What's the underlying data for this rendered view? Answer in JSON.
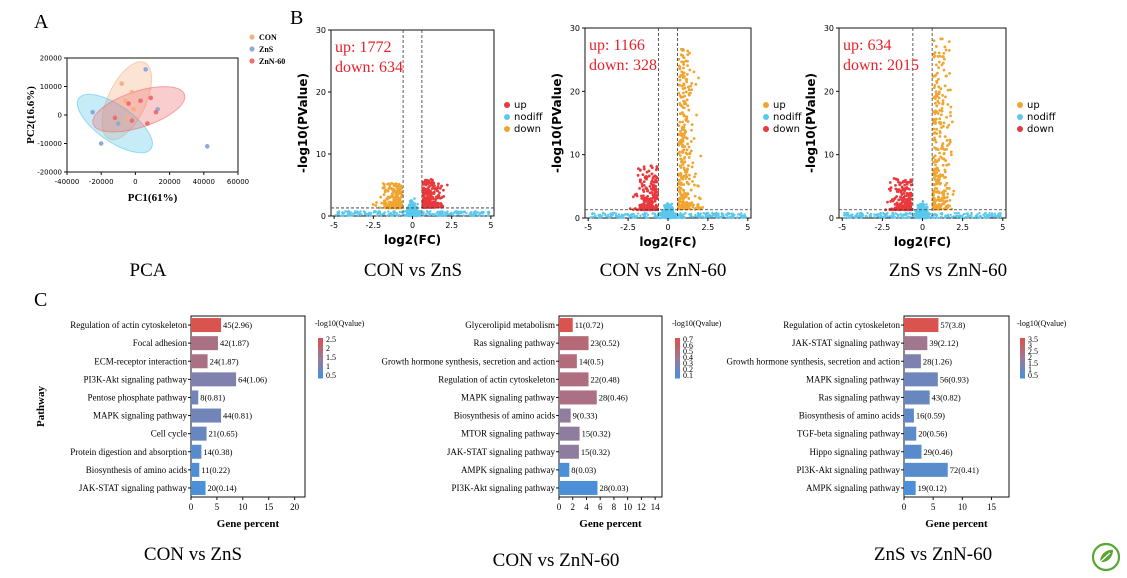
{
  "panel_labels": {
    "a": "A",
    "b": "B",
    "c": "C"
  },
  "captions": {
    "pca": "PCA",
    "volcano": [
      "CON vs ZnS",
      "CON vs ZnN-60",
      "ZnS vs ZnN-60"
    ],
    "enrich": [
      "CON vs ZnS",
      "CON vs ZnN-60",
      "ZnS vs ZnN-60"
    ]
  },
  "colors": {
    "con": "#f4b183",
    "zns": "#8fa9db",
    "znn": "#ef6f6f",
    "up_red": "#e8393d",
    "nodiff": "#5bc8ec",
    "down_orange": "#f1a531",
    "counts_text": "#e8212a",
    "bar_high": "#d9534f",
    "bar_mid": "#9c7a95",
    "bar_low": "#4a8fd8",
    "logo": "#5ba532"
  },
  "logo_icon": "leaf-logo-icon",
  "chart_data": [
    {
      "type": "scatter",
      "id": "pca",
      "xlabel": "PC1(61%)",
      "ylabel": "PC2(16.6%)",
      "xlim": [
        -40000,
        60000
      ],
      "ylim": [
        -20000,
        20000
      ],
      "xticks": [
        "-40000",
        "-20000",
        "0",
        "20000",
        "40000",
        "60000"
      ],
      "yticks": [
        "-20000",
        "-10000",
        "0",
        "10000",
        "20000"
      ],
      "legend": [
        "CON",
        "ZnS",
        "ZnN-60"
      ],
      "series": [
        {
          "name": "CON",
          "points": [
            [
              -8000,
              11000
            ],
            [
              -2000,
              8000
            ],
            [
              -6000,
              5000
            ],
            [
              -1000,
              2000
            ],
            [
              -9000,
              -3000
            ],
            [
              -5000,
              -1000
            ]
          ]
        },
        {
          "name": "ZnS",
          "points": [
            [
              6000,
              16000
            ],
            [
              -25000,
              1000
            ],
            [
              -20000,
              -10000
            ],
            [
              13000,
              2000
            ],
            [
              -10000,
              -3000
            ],
            [
              42000,
              -11000
            ]
          ]
        },
        {
          "name": "ZnN-60",
          "points": [
            [
              3000,
              5000
            ],
            [
              -4000,
              4000
            ],
            [
              9000,
              6000
            ],
            [
              12000,
              1000
            ],
            [
              -2000,
              -2000
            ],
            [
              7000,
              -3000
            ],
            [
              -12000,
              -1000
            ]
          ]
        }
      ]
    },
    {
      "type": "scatter",
      "id": "volcano1",
      "title_up": "up: 1772",
      "title_down": "down: 634",
      "xlabel": "log2(FC)",
      "ylabel": "-log10(PValue)",
      "xlim": [
        -5.2,
        5.2
      ],
      "ylim": [
        0,
        30
      ],
      "xticks": [
        "-5",
        "-2.5",
        "0",
        "2.5",
        "5"
      ],
      "yticks": [
        "0",
        "10",
        "20",
        "30"
      ],
      "legend": [
        "up",
        "nodiff",
        "down"
      ],
      "up_side": "right",
      "up_max": 4.5,
      "down_max": 4.0
    },
    {
      "type": "scatter",
      "id": "volcano2",
      "title_up": "up: 1166",
      "title_down": "down: 328",
      "xlabel": "log2(FC)",
      "ylabel": "-log10(PValue)",
      "xlim": [
        -5.2,
        5.2
      ],
      "ylim": [
        0,
        30
      ],
      "xticks": [
        "-5",
        "-2.5",
        "0",
        "2.5",
        "5"
      ],
      "yticks": [
        "0",
        "10",
        "20",
        "30"
      ],
      "legend": [
        "up",
        "nodiff",
        "down"
      ],
      "up_side": "right",
      "up_max": 26,
      "down_max": 7
    },
    {
      "type": "scatter",
      "id": "volcano3",
      "title_up": "up: 634",
      "title_down": "down: 2015",
      "xlabel": "log2(FC)",
      "ylabel": "-log10(PValue)",
      "xlim": [
        -5.2,
        5.2
      ],
      "ylim": [
        0,
        30
      ],
      "xticks": [
        "-5",
        "-2.5",
        "0",
        "2.5",
        "5"
      ],
      "yticks": [
        "0",
        "10",
        "20",
        "30"
      ],
      "legend": [
        "up",
        "nodiff",
        "down"
      ],
      "up_side": "right",
      "up_max": 27,
      "down_max": 5
    },
    {
      "type": "bar",
      "id": "enrich1",
      "ylabel": "Pathway",
      "xlabel": "Gene percent",
      "xlim": [
        0,
        22
      ],
      "xticks": [
        "0",
        "5",
        "10",
        "15",
        "20"
      ],
      "legend_title": "-log10(Qvalue)",
      "legend_ticks": [
        "2.5",
        "2",
        "1.5",
        "1",
        "0.5"
      ],
      "categories": [
        "Regulation of actin cytoskeleton",
        "Focal adhesion",
        "ECM-receptor interaction",
        "PI3K-Akt signaling pathway",
        "Pentose phosphate pathway",
        "MAPK signaling pathway",
        "Cell cycle",
        "Protein digestion and absorption",
        "Biosynthesis of amino acids",
        "JAK-STAT signaling pathway"
      ],
      "values": [
        5.8,
        5.2,
        3.2,
        8.7,
        1.4,
        5.8,
        3.0,
        2.0,
        1.6,
        2.8
      ],
      "labels": [
        "45(2.96)",
        "42(1.87)",
        "24(1.87)",
        "64(1.06)",
        "8(0.81)",
        "44(0.81)",
        "21(0.65)",
        "14(0.38)",
        "11(0.22)",
        "20(0.14)"
      ],
      "q": [
        2.96,
        1.87,
        1.87,
        1.06,
        0.81,
        0.81,
        0.65,
        0.38,
        0.22,
        0.14
      ]
    },
    {
      "type": "bar",
      "id": "enrich2",
      "xlabel": "Gene percent",
      "xlim": [
        0,
        15
      ],
      "xticks": [
        "0",
        "2",
        "4",
        "6",
        "8",
        "10",
        "12",
        "14"
      ],
      "legend_title": "-log10(Qvalue)",
      "legend_ticks": [
        "0.7",
        "0.6",
        "0.5",
        "0.4",
        "0.3",
        "0.2",
        "0.1"
      ],
      "categories": [
        "Glycerolipid metabolism",
        "Ras signaling pathway",
        "Growth hormone synthesis, secretion and action",
        "Regulation of actin cytoskeleton",
        "MAPK signaling pathway",
        "Biosynthesis of amino acids",
        "MTOR signaling pathway",
        "JAK-STAT signaling pathway",
        "AMPK signaling pathway",
        "PI3K-Akt signaling pathway"
      ],
      "values": [
        2.0,
        4.3,
        2.6,
        4.3,
        5.5,
        1.7,
        3.0,
        2.9,
        1.5,
        5.6
      ],
      "labels": [
        "11(0.72)",
        "23(0.52)",
        "14(0.5)",
        "22(0.48)",
        "28(0.46)",
        "9(0.33)",
        "15(0.32)",
        "15(0.32)",
        "8(0.03)",
        "28(0.03)"
      ],
      "q": [
        0.72,
        0.52,
        0.5,
        0.48,
        0.46,
        0.33,
        0.32,
        0.32,
        0.03,
        0.03
      ]
    },
    {
      "type": "bar",
      "id": "enrich3",
      "xlabel": "Gene percent",
      "xlim": [
        0,
        18
      ],
      "xticks": [
        "0",
        "5",
        "10",
        "15"
      ],
      "legend_title": "-log10(Qvalue)",
      "legend_ticks": [
        "3.5",
        "3",
        "2.5",
        "2",
        "1.5",
        "1",
        "0.5"
      ],
      "categories": [
        "Regulation of actin cytoskeleton",
        "JAK-STAT signaling pathway",
        "Growth hormone synthesis, secretion and action",
        "MAPK signaling pathway",
        "Ras signaling pathway",
        "Biosynthesis of amino acids",
        "TGF-beta signaling pathway",
        "Hippo signaling pathway",
        "PI3K-Akt signaling pathway",
        "AMPK signaling pathway"
      ],
      "values": [
        5.9,
        4.0,
        2.9,
        5.8,
        4.4,
        1.7,
        2.1,
        3.0,
        7.5,
        2.0
      ],
      "labels": [
        "57(3.8)",
        "39(2.12)",
        "28(1.26)",
        "56(0.93)",
        "43(0.82)",
        "16(0.59)",
        "20(0.56)",
        "29(0.46)",
        "72(0.41)",
        "19(0.12)"
      ],
      "q": [
        3.8,
        2.12,
        1.26,
        0.93,
        0.82,
        0.59,
        0.56,
        0.46,
        0.41,
        0.12
      ]
    }
  ]
}
